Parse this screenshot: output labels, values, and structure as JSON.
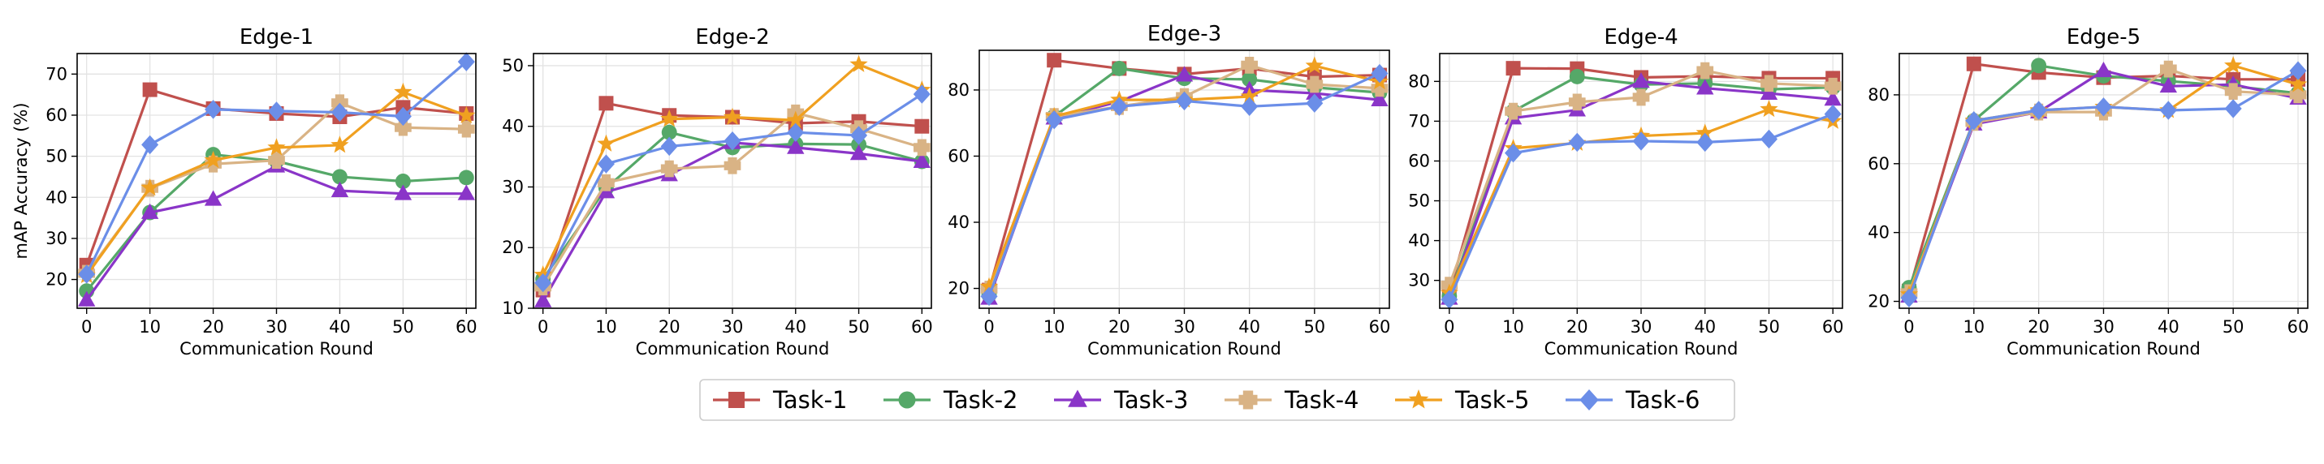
{
  "chart_data": {
    "type": "line",
    "shared_legend": [
      "Task-1",
      "Task-2",
      "Task-3",
      "Task-4",
      "Task-5",
      "Task-6"
    ],
    "legend_location": "bottom-center",
    "series_styles": [
      {
        "name": "Task-1",
        "color": "#c0504d",
        "marker": "square"
      },
      {
        "name": "Task-2",
        "color": "#55a868",
        "marker": "circle"
      },
      {
        "name": "Task-3",
        "color": "#8a35c8",
        "marker": "triangle"
      },
      {
        "name": "Task-4",
        "color": "#d9b385",
        "marker": "plus"
      },
      {
        "name": "Task-5",
        "color": "#f0a020",
        "marker": "star"
      },
      {
        "name": "Task-6",
        "color": "#6b8ee8",
        "marker": "diamond"
      }
    ],
    "panels": [
      {
        "title": "Edge-1",
        "xlabel": "Communication Round",
        "ylabel": "mAP Accuracy (%)",
        "x": [
          0,
          10,
          20,
          30,
          40,
          50,
          60
        ],
        "xlim": [
          -1.5,
          61.5
        ],
        "ylim": [
          13,
          75
        ],
        "yticks": [
          20,
          30,
          40,
          50,
          60,
          70
        ],
        "grid": true,
        "series": [
          {
            "name": "Task-1",
            "values": [
              23.5,
              66.2,
              61.6,
              60.4,
              59.6,
              61.9,
              60.4
            ]
          },
          {
            "name": "Task-2",
            "values": [
              17.2,
              36.3,
              50.4,
              48.8,
              45.0,
              43.9,
              44.8
            ]
          },
          {
            "name": "Task-3",
            "values": [
              15.0,
              36.3,
              39.5,
              47.6,
              41.6,
              40.9,
              40.9
            ]
          },
          {
            "name": "Task-4",
            "values": [
              21.5,
              42.2,
              48.1,
              49.0,
              63.0,
              57.0,
              56.6
            ]
          },
          {
            "name": "Task-5",
            "values": [
              21.0,
              42.3,
              49.0,
              52.1,
              52.7,
              65.6,
              59.9
            ]
          },
          {
            "name": "Task-6",
            "values": [
              21.3,
              52.8,
              61.4,
              61.0,
              60.7,
              59.7,
              73.0
            ]
          }
        ]
      },
      {
        "title": "Edge-2",
        "xlabel": "Communication Round",
        "ylabel": "",
        "x": [
          0,
          10,
          20,
          30,
          40,
          50,
          60
        ],
        "xlim": [
          -1.5,
          61.5
        ],
        "ylim": [
          10,
          52
        ],
        "yticks": [
          10,
          20,
          30,
          40,
          50
        ],
        "grid": true,
        "series": [
          {
            "name": "Task-1",
            "values": [
              13.0,
              43.8,
              41.8,
              41.5,
              40.5,
              40.8,
              40.0
            ]
          },
          {
            "name": "Task-2",
            "values": [
              14.8,
              29.8,
              39.0,
              36.5,
              37.1,
              37.0,
              34.2
            ]
          },
          {
            "name": "Task-3",
            "values": [
              11.2,
              29.2,
              32.0,
              37.3,
              36.5,
              35.5,
              34.2
            ]
          },
          {
            "name": "Task-4",
            "values": [
              13.5,
              30.7,
              33.0,
              33.5,
              42.2,
              39.6,
              36.5
            ]
          },
          {
            "name": "Task-5",
            "values": [
              15.5,
              37.1,
              41.2,
              41.5,
              41.0,
              50.2,
              46.0
            ]
          },
          {
            "name": "Task-6",
            "values": [
              14.2,
              33.8,
              36.7,
              37.6,
              39.0,
              38.5,
              45.3
            ]
          }
        ]
      },
      {
        "title": "Edge-3",
        "xlabel": "Communication Round",
        "ylabel": "",
        "x": [
          0,
          10,
          20,
          30,
          40,
          50,
          60
        ],
        "xlim": [
          -1.5,
          61.5
        ],
        "ylim": [
          14,
          92
        ],
        "yticks": [
          20,
          40,
          60,
          80
        ],
        "grid": true,
        "series": [
          {
            "name": "Task-1",
            "values": [
              19.5,
              89.0,
              86.5,
              84.8,
              86.5,
              84.0,
              84.5
            ]
          },
          {
            "name": "Task-2",
            "values": [
              18.0,
              72.0,
              86.5,
              83.5,
              83.2,
              80.8,
              79.2
            ]
          },
          {
            "name": "Task-3",
            "values": [
              17.0,
              71.5,
              76.5,
              84.5,
              80.0,
              79.0,
              77.0
            ]
          },
          {
            "name": "Task-4",
            "values": [
              19.8,
              72.0,
              75.0,
              78.0,
              87.5,
              81.7,
              80.5
            ]
          },
          {
            "name": "Task-5",
            "values": [
              20.5,
              72.0,
              77.0,
              77.0,
              78.0,
              87.3,
              82.5
            ]
          },
          {
            "name": "Task-6",
            "values": [
              17.6,
              71.0,
              75.0,
              76.7,
              75.0,
              76.0,
              85.0
            ]
          }
        ]
      },
      {
        "title": "Edge-4",
        "xlabel": "Communication Round",
        "ylabel": "",
        "x": [
          0,
          10,
          20,
          30,
          40,
          50,
          60
        ],
        "xlim": [
          -1.5,
          61.5
        ],
        "ylim": [
          23,
          87
        ],
        "yticks": [
          30,
          40,
          50,
          60,
          70,
          80
        ],
        "grid": true,
        "series": [
          {
            "name": "Task-1",
            "values": [
              27.0,
              83.3,
              83.2,
              81.0,
              81.3,
              80.8,
              80.8
            ]
          },
          {
            "name": "Task-2",
            "values": [
              26.0,
              72.5,
              81.2,
              79.2,
              79.5,
              78.0,
              78.5
            ]
          },
          {
            "name": "Task-3",
            "values": [
              25.5,
              70.8,
              72.8,
              80.0,
              78.3,
              77.0,
              75.5
            ]
          },
          {
            "name": "Task-4",
            "values": [
              28.8,
              72.5,
              74.8,
              76.0,
              82.7,
              79.5,
              78.8
            ]
          },
          {
            "name": "Task-5",
            "values": [
              26.8,
              63.2,
              64.5,
              66.3,
              67.0,
              73.0,
              70.0
            ]
          },
          {
            "name": "Task-6",
            "values": [
              25.2,
              62.0,
              64.7,
              65.0,
              64.7,
              65.5,
              71.8
            ]
          }
        ]
      },
      {
        "title": "Edge-5",
        "xlabel": "Communication Round",
        "ylabel": "",
        "x": [
          0,
          10,
          20,
          30,
          40,
          50,
          60
        ],
        "xlim": [
          -1.5,
          61.5
        ],
        "ylim": [
          18,
          92
        ],
        "yticks": [
          20,
          40,
          60,
          80
        ],
        "grid": true,
        "series": [
          {
            "name": "Task-1",
            "values": [
              23.0,
              89.0,
              86.5,
              85.0,
              85.5,
              84.5,
              84.5
            ]
          },
          {
            "name": "Task-2",
            "values": [
              24.0,
              72.5,
              88.5,
              85.5,
              84.0,
              82.5,
              80.5
            ]
          },
          {
            "name": "Task-3",
            "values": [
              21.5,
              71.5,
              75.0,
              87.0,
              82.5,
              83.0,
              79.0
            ]
          },
          {
            "name": "Task-4",
            "values": [
              22.5,
              72.0,
              75.0,
              75.0,
              87.5,
              81.0,
              80.0
            ]
          },
          {
            "name": "Task-5",
            "values": [
              22.0,
              72.5,
              75.5,
              76.5,
              75.5,
              88.5,
              83.0
            ]
          },
          {
            "name": "Task-6",
            "values": [
              21.0,
              72.5,
              75.5,
              76.5,
              75.5,
              76.0,
              87.0
            ]
          }
        ]
      }
    ]
  }
}
